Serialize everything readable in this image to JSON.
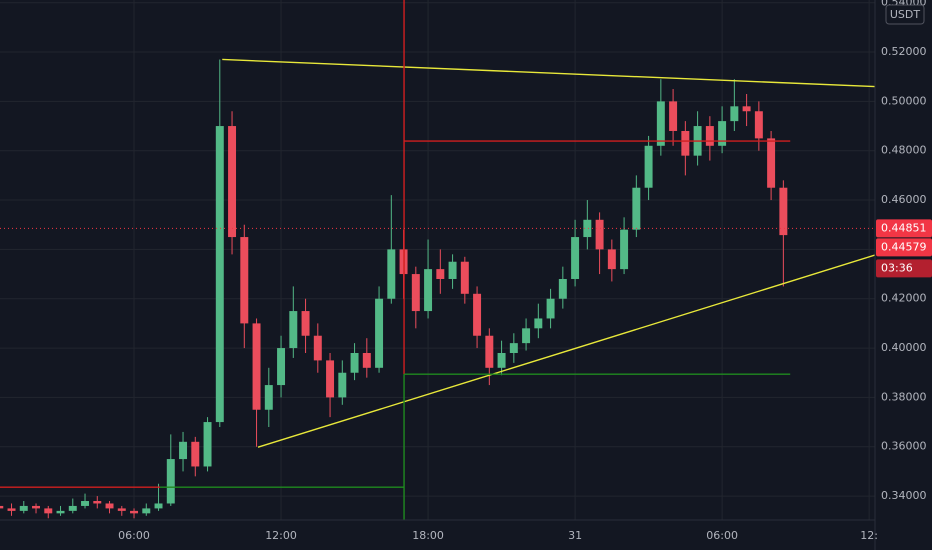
{
  "chart_data": {
    "type": "candlestick",
    "quote": "USDT",
    "up_color": "#53b987",
    "down_color": "#eb4d5c",
    "x": [
      0.5,
      1,
      1.5,
      2,
      2.5,
      3,
      3.5,
      4,
      4.5,
      5,
      5.5,
      6,
      6.5,
      7,
      7.5,
      8,
      8.5,
      9,
      9.5,
      10,
      10.5,
      11,
      11.5,
      12,
      12.5,
      13,
      13.5,
      14,
      14.5,
      15,
      15.5,
      16,
      16.5,
      17,
      17.5,
      18,
      18.5,
      19,
      19.5,
      20,
      20.5,
      21,
      21.5,
      22,
      22.5,
      23,
      23.5,
      24,
      24.5,
      25,
      25.5,
      26,
      26.5,
      27,
      27.5,
      28,
      28.5,
      29,
      29.5,
      30,
      30.5,
      31,
      31.5,
      32,
      32.5
    ],
    "open": [
      0.336,
      0.335,
      0.334,
      0.336,
      0.335,
      0.333,
      0.334,
      0.336,
      0.338,
      0.337,
      0.335,
      0.334,
      0.333,
      0.335,
      0.337,
      0.355,
      0.362,
      0.352,
      0.37,
      0.49,
      0.445,
      0.41,
      0.375,
      0.385,
      0.4,
      0.415,
      0.405,
      0.395,
      0.38,
      0.39,
      0.398,
      0.392,
      0.42,
      0.44,
      0.43,
      0.415,
      0.432,
      0.428,
      0.435,
      0.422,
      0.405,
      0.392,
      0.398,
      0.402,
      0.408,
      0.412,
      0.42,
      0.428,
      0.445,
      0.452,
      0.44,
      0.432,
      0.448,
      0.465,
      0.482,
      0.5,
      0.488,
      0.478,
      0.49,
      0.482,
      0.492,
      0.498,
      0.496,
      0.485,
      0.465
    ],
    "high": [
      0.338,
      0.337,
      0.338,
      0.337,
      0.336,
      0.336,
      0.339,
      0.341,
      0.34,
      0.338,
      0.336,
      0.335,
      0.337,
      0.345,
      0.365,
      0.366,
      0.364,
      0.372,
      0.517,
      0.496,
      0.45,
      0.412,
      0.392,
      0.405,
      0.425,
      0.42,
      0.41,
      0.398,
      0.395,
      0.402,
      0.404,
      0.425,
      0.462,
      0.448,
      0.433,
      0.444,
      0.44,
      0.438,
      0.437,
      0.425,
      0.408,
      0.403,
      0.406,
      0.412,
      0.418,
      0.424,
      0.433,
      0.452,
      0.46,
      0.455,
      0.444,
      0.453,
      0.47,
      0.486,
      0.509,
      0.505,
      0.492,
      0.496,
      0.494,
      0.498,
      0.509,
      0.503,
      0.5,
      0.488,
      0.468
    ],
    "low": [
      0.333,
      0.332,
      0.333,
      0.333,
      0.331,
      0.332,
      0.333,
      0.335,
      0.335,
      0.333,
      0.332,
      0.331,
      0.332,
      0.334,
      0.336,
      0.35,
      0.348,
      0.35,
      0.368,
      0.438,
      0.4,
      0.36,
      0.368,
      0.38,
      0.396,
      0.398,
      0.39,
      0.372,
      0.377,
      0.387,
      0.388,
      0.39,
      0.418,
      0.42,
      0.408,
      0.412,
      0.422,
      0.424,
      0.418,
      0.4,
      0.385,
      0.389,
      0.394,
      0.399,
      0.404,
      0.408,
      0.416,
      0.425,
      0.44,
      0.43,
      0.427,
      0.43,
      0.445,
      0.46,
      0.478,
      0.482,
      0.47,
      0.474,
      0.476,
      0.479,
      0.488,
      0.49,
      0.48,
      0.46,
      0.425
    ],
    "close": [
      0.335,
      0.334,
      0.336,
      0.335,
      0.333,
      0.334,
      0.336,
      0.338,
      0.337,
      0.335,
      0.334,
      0.333,
      0.335,
      0.337,
      0.355,
      0.362,
      0.352,
      0.37,
      0.49,
      0.445,
      0.41,
      0.375,
      0.385,
      0.4,
      0.415,
      0.405,
      0.395,
      0.38,
      0.39,
      0.398,
      0.392,
      0.42,
      0.44,
      0.43,
      0.415,
      0.432,
      0.428,
      0.435,
      0.422,
      0.405,
      0.392,
      0.398,
      0.402,
      0.408,
      0.412,
      0.42,
      0.428,
      0.445,
      0.452,
      0.44,
      0.432,
      0.448,
      0.465,
      0.482,
      0.5,
      0.488,
      0.478,
      0.49,
      0.482,
      0.492,
      0.498,
      0.496,
      0.485,
      0.465,
      0.44579
    ],
    "xlim": [
      0.53,
      36.24
    ],
    "xticks": [
      {
        "value": 6,
        "label": "06:00"
      },
      {
        "value": 12,
        "label": "12:00"
      },
      {
        "value": 18,
        "label": "18:00"
      },
      {
        "value": 24,
        "label": "31"
      },
      {
        "value": 30,
        "label": "06:00"
      },
      {
        "value": 36,
        "label": "12:"
      }
    ],
    "ylim": [
      0.3303,
      0.5411
    ],
    "yticks": [
      {
        "value": 0.34,
        "label": "0.34000"
      },
      {
        "value": 0.36,
        "label": "0.36000"
      },
      {
        "value": 0.38,
        "label": "0.38000"
      },
      {
        "value": 0.4,
        "label": "0.40000"
      },
      {
        "value": 0.42,
        "label": "0.42000"
      },
      {
        "value": 0.44,
        "label": "0.44000"
      },
      {
        "value": 0.46,
        "label": "0.46000"
      },
      {
        "value": 0.48,
        "label": "0.48000"
      },
      {
        "value": 0.5,
        "label": "0.50000"
      },
      {
        "value": 0.52,
        "label": "0.52000"
      },
      {
        "value": 0.54,
        "label": "0.54000"
      }
    ],
    "grid": true,
    "price_labels": [
      {
        "value": 0.44851,
        "label": "0.44851",
        "color": "#f23645"
      },
      {
        "value": 0.44579,
        "label": "0.44579",
        "color": "#f23645"
      }
    ],
    "countdown": "03:36",
    "drawings": [
      {
        "color": "#e8e83a",
        "points": [
          [
            9.6,
            0.517
          ],
          [
            36.24,
            0.506
          ]
        ]
      },
      {
        "color": "#e8e83a",
        "points": [
          [
            11.06,
            0.3598
          ],
          [
            36.24,
            0.4377
          ]
        ]
      },
      {
        "color": "#d01f1f",
        "points": [
          [
            17.02,
            0.5411
          ],
          [
            17.02,
            0.3894
          ]
        ]
      },
      {
        "color": "#d01f1f",
        "points": [
          [
            17.02,
            0.4839
          ],
          [
            32.78,
            0.4839
          ]
        ]
      },
      {
        "color": "#1f8a1f",
        "points": [
          [
            17.02,
            0.3894
          ],
          [
            32.78,
            0.3894
          ]
        ]
      },
      {
        "color": "#1f8a1f",
        "points": [
          [
            17.02,
            0.3894
          ],
          [
            17.02,
            0.3303
          ]
        ]
      },
      {
        "color": "#d01f1f",
        "points": [
          [
            0.53,
            0.3436
          ],
          [
            7.06,
            0.3436
          ]
        ]
      },
      {
        "color": "#1f8a1f",
        "points": [
          [
            7.06,
            0.3436
          ],
          [
            17.02,
            0.3436
          ]
        ]
      }
    ]
  }
}
